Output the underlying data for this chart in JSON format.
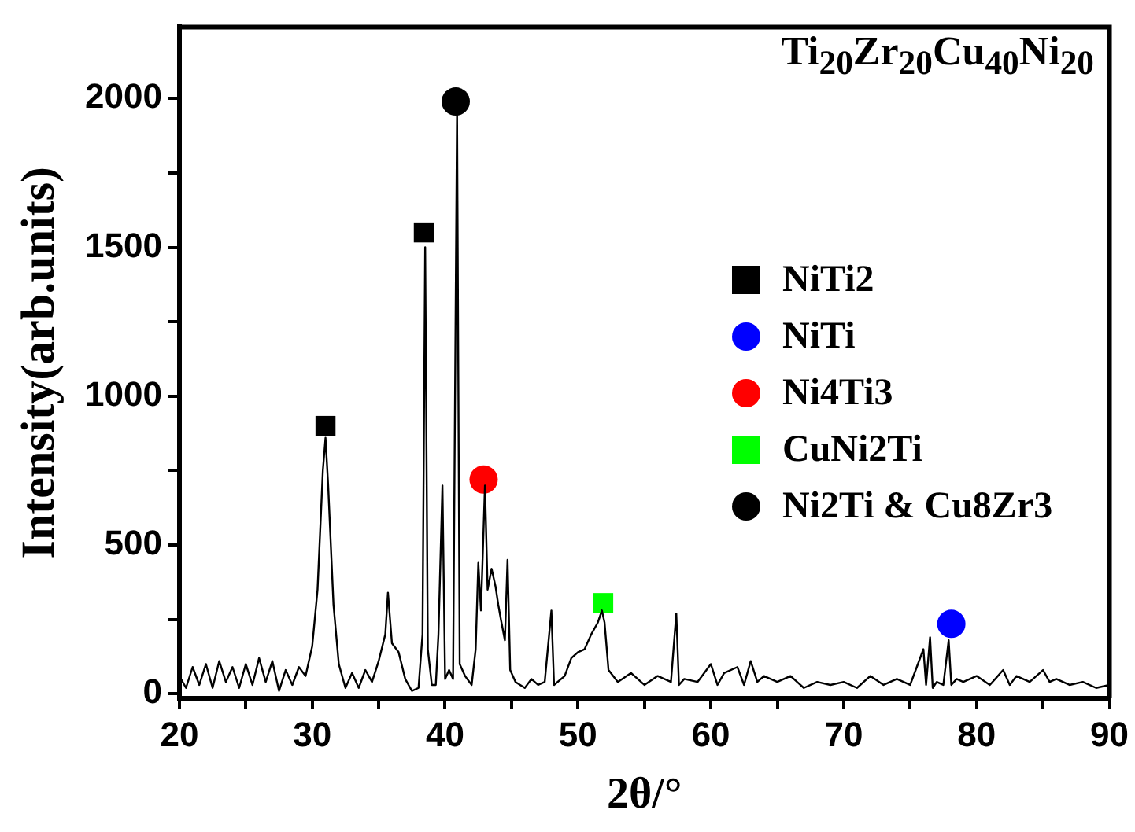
{
  "chart_data": {
    "type": "line",
    "title": "Ti$_{20}$Zr$_{20}$Cu$_{40}$Ni$_{20}$",
    "xlabel": "2θ/°",
    "ylabel": "Intensity(arb.units)",
    "xlim": [
      20,
      90
    ],
    "ylim": [
      -15,
      2240
    ],
    "xticks": [
      20,
      {
        "value": 25,
        "label": null
      },
      30,
      {
        "value": 35,
        "label": null
      },
      40,
      {
        "value": 45,
        "label": null
      },
      50,
      {
        "value": 55,
        "label": null
      },
      60,
      {
        "value": 65,
        "label": null
      },
      70,
      {
        "value": 75,
        "label": null
      },
      80,
      {
        "value": 85,
        "label": null
      },
      90
    ],
    "yticks": [
      0,
      {
        "value": 250,
        "label": null
      },
      500,
      {
        "value": 750,
        "label": null
      },
      1000,
      {
        "value": 1250,
        "label": null
      },
      1500,
      {
        "value": 1750,
        "label": null
      },
      2000
    ],
    "legend": "right",
    "marker": "none",
    "line_style": "solid",
    "series": [
      {
        "color": "#000000",
        "x": [
          20,
          20.5,
          21,
          21.5,
          22,
          22.5,
          23,
          23.5,
          24,
          24.5,
          25,
          25.5,
          26,
          26.5,
          27,
          27.5,
          28,
          28.5,
          29,
          29.5,
          30,
          30.4,
          30.8,
          31.0,
          31.2,
          31.6,
          32,
          32.5,
          33,
          33.5,
          34,
          34.5,
          35,
          35.5,
          35.7,
          36,
          36.5,
          37,
          37.5,
          38,
          38.3,
          38.5,
          38.7,
          39,
          39.3,
          39.5,
          39.8,
          40,
          40.3,
          40.6,
          40.9,
          41.1,
          41.5,
          42,
          42.3,
          42.5,
          42.7,
          43,
          43.2,
          43.5,
          43.8,
          44,
          44.2,
          44.5,
          44.7,
          44.9,
          45.3,
          46,
          46.5,
          47,
          47.5,
          48,
          48.2,
          49,
          49.5,
          50,
          50.5,
          51,
          51.5,
          51.8,
          52,
          52.3,
          53,
          54,
          55,
          56,
          57,
          57.4,
          57.6,
          58,
          59,
          60,
          60.5,
          61,
          62,
          62.5,
          63,
          63.5,
          64,
          65,
          66,
          67,
          68,
          69,
          70,
          71,
          72,
          73,
          74,
          75,
          76,
          76.2,
          76.5,
          76.7,
          77,
          77.5,
          77.9,
          78.1,
          78.5,
          79,
          80,
          81,
          82,
          82.5,
          83,
          84,
          85,
          85.5,
          86,
          87,
          88,
          89,
          90
        ],
        "values": [
          60,
          20,
          90,
          30,
          100,
          20,
          110,
          40,
          90,
          20,
          100,
          30,
          120,
          40,
          110,
          10,
          80,
          30,
          90,
          60,
          160,
          350,
          750,
          860,
          700,
          300,
          100,
          20,
          70,
          20,
          80,
          40,
          110,
          200,
          340,
          170,
          140,
          50,
          10,
          20,
          200,
          1500,
          150,
          30,
          30,
          200,
          700,
          50,
          80,
          50,
          1960,
          100,
          60,
          30,
          150,
          440,
          280,
          700,
          350,
          420,
          360,
          300,
          250,
          180,
          450,
          80,
          40,
          20,
          50,
          30,
          40,
          280,
          30,
          60,
          120,
          140,
          150,
          200,
          240,
          280,
          240,
          80,
          40,
          70,
          30,
          60,
          40,
          270,
          30,
          50,
          40,
          100,
          30,
          70,
          90,
          30,
          110,
          40,
          60,
          40,
          60,
          20,
          40,
          30,
          40,
          20,
          60,
          30,
          50,
          30,
          150,
          30,
          190,
          20,
          40,
          30,
          180,
          30,
          50,
          40,
          60,
          30,
          80,
          30,
          60,
          40,
          80,
          40,
          50,
          30,
          40,
          20,
          30
        ]
      },
      {
        "type": "scatter",
        "name": "NiTi2",
        "color": "#000000",
        "marker": "square",
        "x": [
          31,
          38.4
        ],
        "values": [
          900,
          1550
        ]
      },
      {
        "type": "scatter",
        "name": "NiTi",
        "color": "#0000ff",
        "marker": "circle",
        "x": [
          78.1
        ],
        "values": [
          235
        ]
      },
      {
        "type": "scatter",
        "name": "Ni4Ti3",
        "color": "#ff0000",
        "marker": "circle",
        "x": [
          42.9
        ],
        "values": [
          720
        ]
      },
      {
        "type": "scatter",
        "name": "CuNi2Ti",
        "color": "#00ff00",
        "marker": "square",
        "x": [
          51.9
        ],
        "values": [
          305
        ]
      },
      {
        "type": "scatter",
        "name": "Ni2Ti & Cu8Zr3",
        "color": "#000000",
        "marker": "circle",
        "x": [
          40.8
        ],
        "values": [
          1990
        ]
      }
    ]
  }
}
